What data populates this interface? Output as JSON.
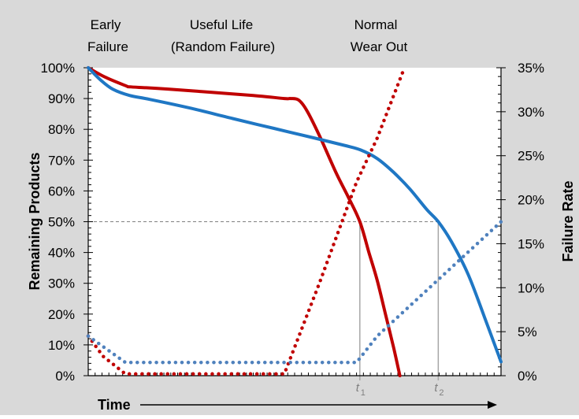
{
  "chart_data": {
    "type": "line",
    "phase_labels": [
      {
        "line1": "Early",
        "line2": "Failure"
      },
      {
        "line1": "Useful Life",
        "line2": "(Random Failure)"
      },
      {
        "line1": "Normal",
        "line2": "Wear Out"
      }
    ],
    "xlabel": "Time",
    "ylabel_left": "Remaining Products",
    "ylabel_right": "Failure Rate",
    "x_axis": {
      "range": [
        0,
        100
      ],
      "tick_labels_shown": false
    },
    "y_left": {
      "range": [
        0,
        100
      ],
      "ticks": [
        0,
        10,
        20,
        30,
        40,
        50,
        60,
        70,
        80,
        90,
        100
      ],
      "tick_labels": [
        "0%",
        "10%",
        "20%",
        "30%",
        "40%",
        "50%",
        "60%",
        "70%",
        "80%",
        "90%",
        "100%"
      ]
    },
    "y_right": {
      "range": [
        0,
        35
      ],
      "ticks": [
        0,
        5,
        10,
        15,
        20,
        25,
        30,
        35
      ],
      "tick_labels": [
        "0%",
        "5%",
        "10%",
        "15%",
        "20%",
        "25%",
        "30%",
        "35%"
      ]
    },
    "reference_line": {
      "axis": "y_left",
      "value": 50,
      "style": "dashed",
      "color": "#808080"
    },
    "markers": [
      {
        "label": "t",
        "subscript": "1",
        "x": 65.8,
        "color": "#a6a6a6"
      },
      {
        "label": "t",
        "subscript": "2",
        "x": 84.8,
        "color": "#a6a6a6"
      }
    ],
    "series": [
      {
        "style": "solid",
        "axis": "left",
        "color": "#c00000",
        "x": [
          0,
          4,
          9,
          10,
          14,
          20,
          30,
          40,
          47.5,
          49,
          51,
          53,
          56,
          60,
          63,
          65.8,
          68,
          70,
          72,
          74,
          75.5
        ],
        "y": [
          100,
          97,
          94.2,
          93.8,
          93.5,
          93,
          92,
          91,
          90,
          90,
          89.5,
          86,
          78,
          66,
          58,
          50,
          40,
          31,
          20,
          9,
          0
        ]
      },
      {
        "style": "solid",
        "axis": "left",
        "color": "#1f77c4",
        "x": [
          0,
          3,
          6,
          10,
          15,
          25,
          35,
          45,
          55,
          62,
          66,
          70,
          74,
          78,
          82,
          84.8,
          88,
          92,
          96,
          100
        ],
        "y": [
          100,
          96,
          93,
          91,
          89.7,
          86.8,
          83.5,
          80.3,
          77.1,
          74.8,
          73.3,
          70.5,
          66,
          60.5,
          54,
          50,
          43.5,
          33,
          19,
          4.5
        ]
      },
      {
        "style": "dotted",
        "axis": "right",
        "color": "#c00000",
        "x": [
          0,
          3.6,
          9,
          47.5,
          56,
          65,
          70,
          76.6
        ],
        "y": [
          4.5,
          2.2,
          0.2,
          0.2,
          10.5,
          22,
          27,
          35
        ]
      },
      {
        "style": "dotted",
        "axis": "right",
        "color": "#4f81bd",
        "x": [
          0,
          9,
          65,
          70,
          85,
          100
        ],
        "y": [
          4.5,
          1.5,
          1.5,
          4.5,
          11,
          17.5
        ]
      }
    ],
    "grid": false,
    "legend": "none"
  }
}
